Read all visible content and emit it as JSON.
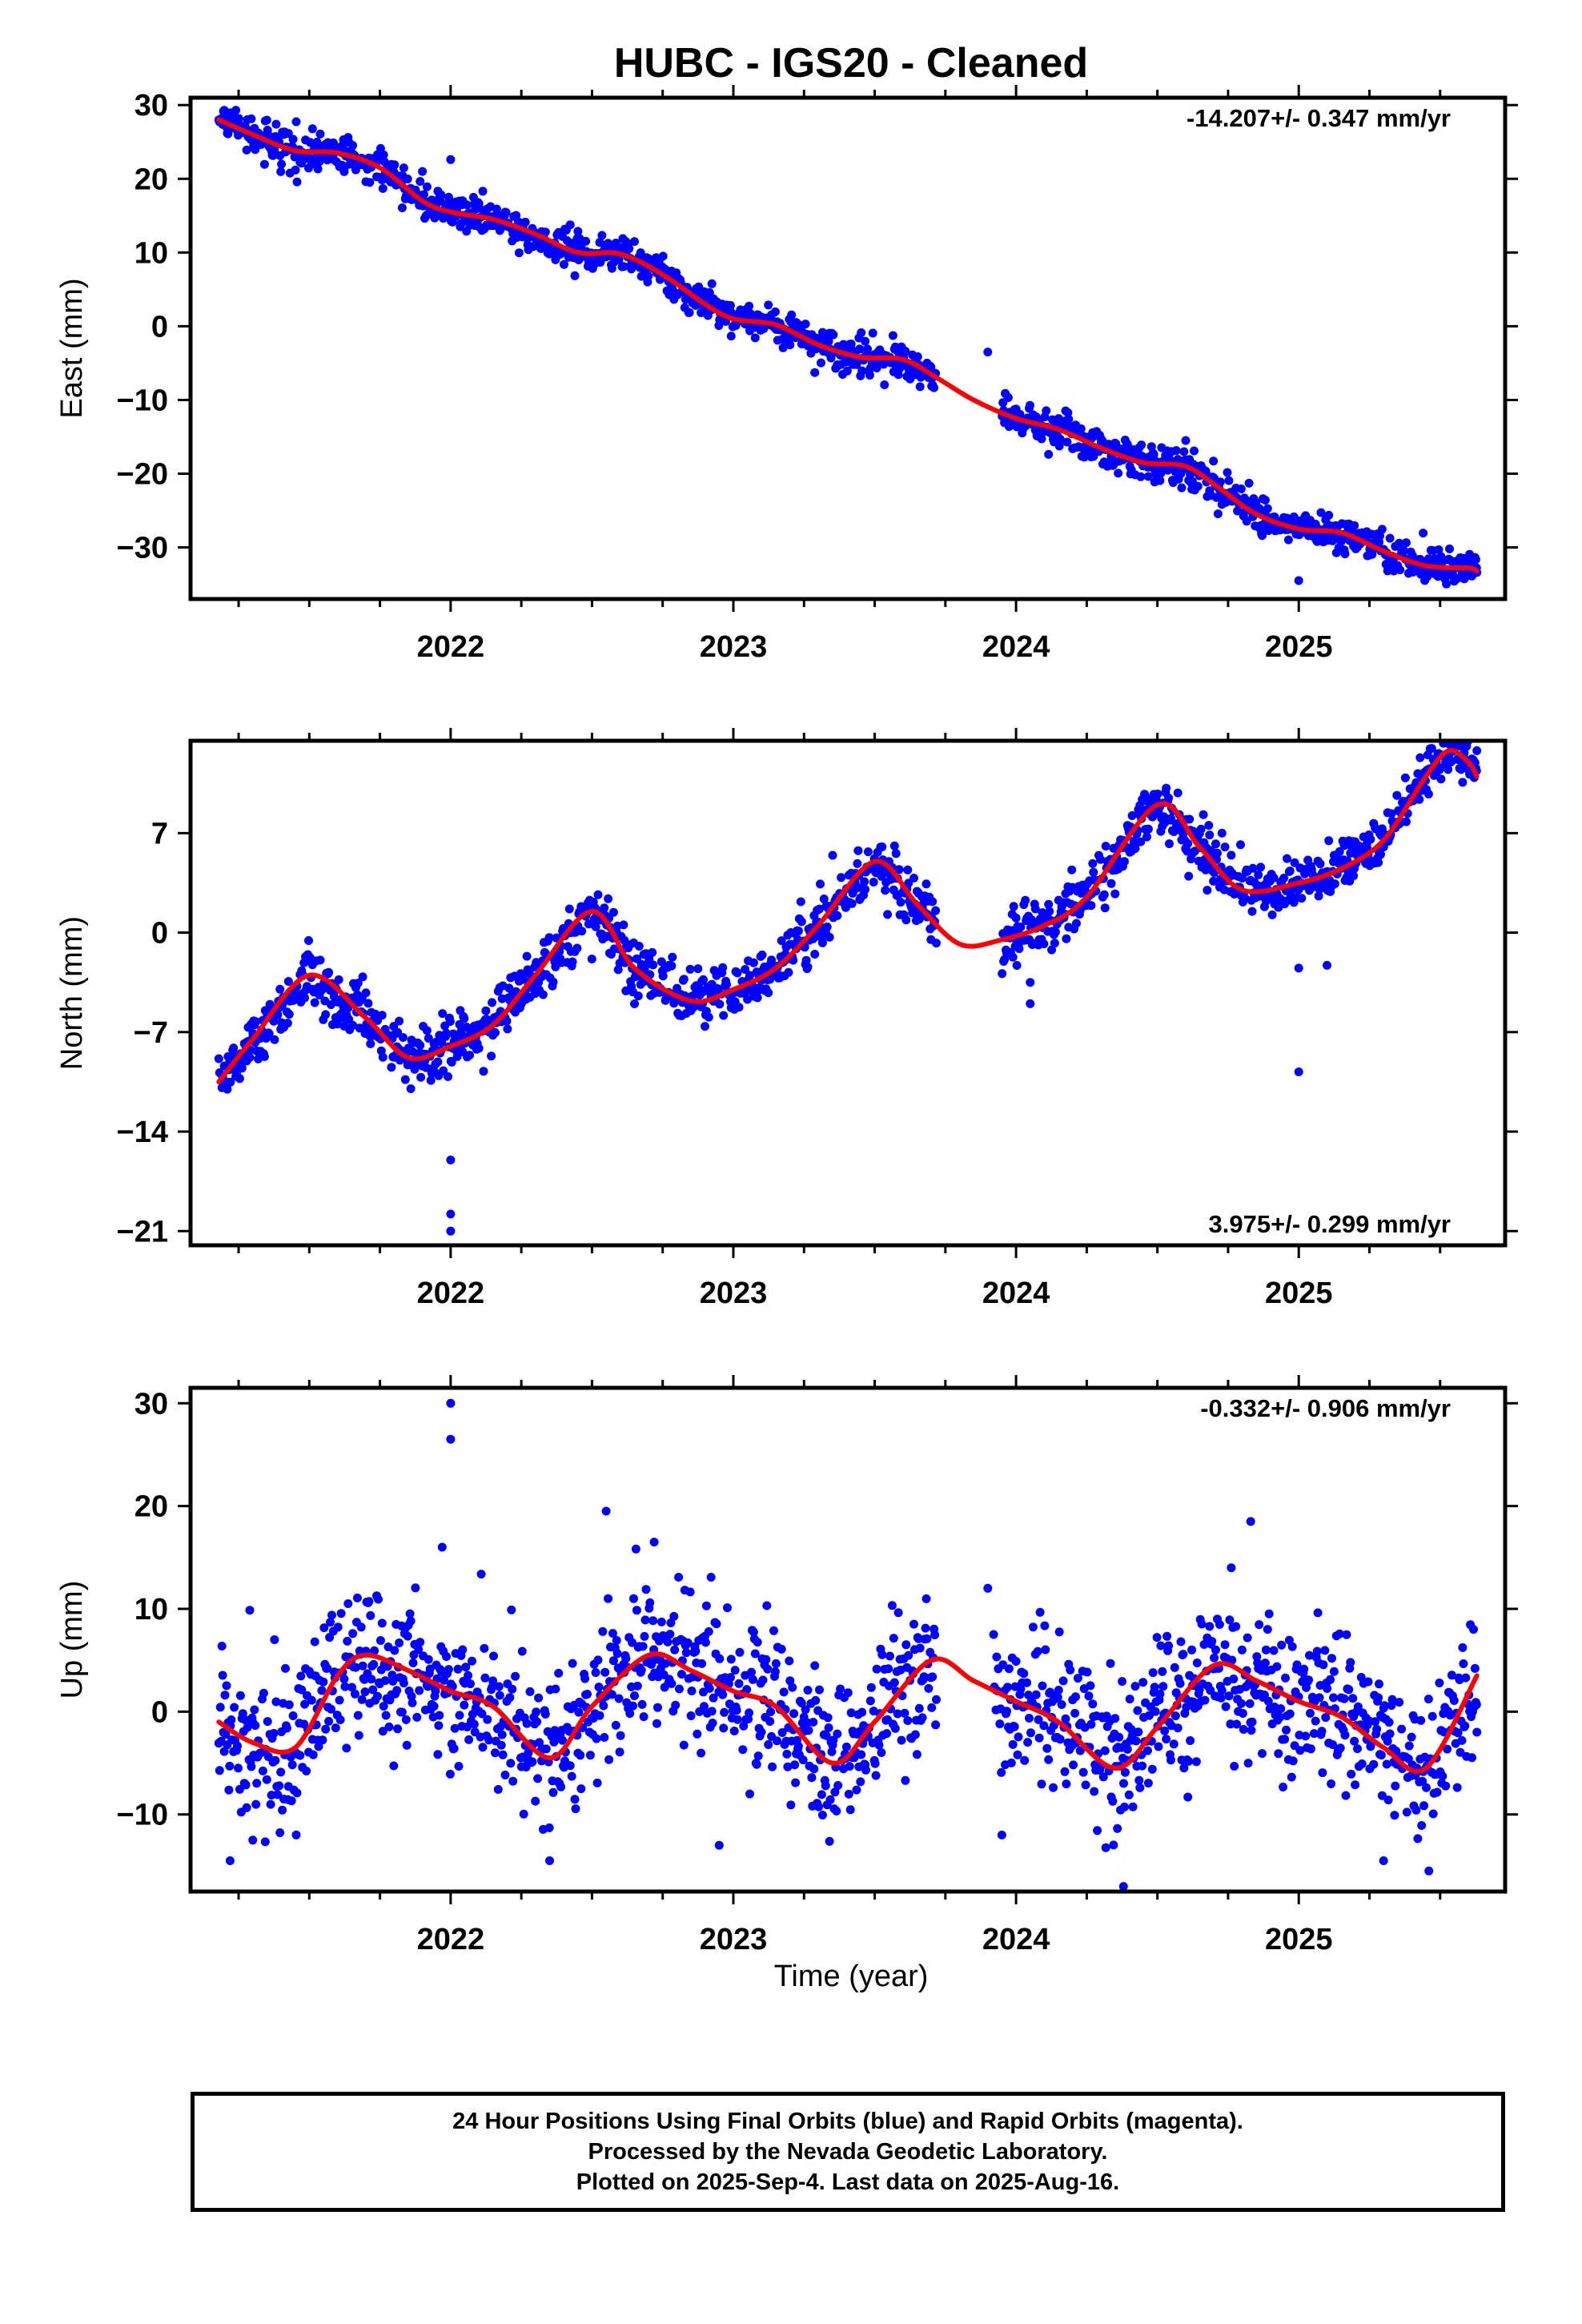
{
  "title": "HUBC  - IGS20 - Cleaned",
  "xlabel": "Time (year)",
  "footer": {
    "line1": "24 Hour Positions Using Final Orbits (blue) and Rapid Orbits (magenta).",
    "line2": "Processed by the Nevada Geodetic Laboratory.",
    "line3": "Plotted on 2025-Sep-4. Last data on 2025-Aug-16."
  },
  "colors": {
    "points": "#0000ff",
    "fit": "#ff0000",
    "axes": "#000000"
  },
  "chart_data": [
    {
      "type": "scatter",
      "component": "east",
      "ylabel": "East (mm)",
      "rate_label": "-14.207+/- 0.347 mm/yr",
      "rate_position": "top-right",
      "xlim": [
        2021.08,
        2025.73
      ],
      "ylim": [
        -37,
        31
      ],
      "x_ticks": [
        2022,
        2023,
        2024,
        2025
      ],
      "y_ticks": [
        30,
        20,
        10,
        0,
        -10,
        -20,
        -30
      ],
      "data_gap": [
        2023.72,
        2023.95
      ],
      "noise_mm": 1.2,
      "isolated_points": [
        [
          2023.9,
          -3.5
        ],
        [
          2022.0,
          22.6
        ],
        [
          2021.9,
          21.0
        ],
        [
          2024.6,
          -15.5
        ],
        [
          2025.0,
          -34.5
        ],
        [
          2025.63,
          -33.4
        ]
      ],
      "fit": {
        "x": [
          2021.18,
          2021.3,
          2021.45,
          2021.6,
          2021.75,
          2021.9,
          2022.0,
          2022.15,
          2022.3,
          2022.45,
          2022.6,
          2022.75,
          2022.9,
          2023.0,
          2023.15,
          2023.3,
          2023.45,
          2023.6,
          2023.72,
          2023.85,
          2024.0,
          2024.15,
          2024.3,
          2024.45,
          2024.6,
          2024.72,
          2024.85,
          2025.0,
          2025.15,
          2025.3,
          2025.45,
          2025.6,
          2025.63
        ],
        "y": [
          28.0,
          26.0,
          23.8,
          23.5,
          21.5,
          17.0,
          15.5,
          14.5,
          12.5,
          10.0,
          9.8,
          7.0,
          3.0,
          1.0,
          0.2,
          -2.5,
          -4.2,
          -4.5,
          -7.0,
          -10.0,
          -12.5,
          -14.0,
          -16.5,
          -18.5,
          -19.0,
          -22.0,
          -25.5,
          -27.5,
          -28.0,
          -30.5,
          -32.5,
          -32.8,
          -33.2
        ]
      }
    },
    {
      "type": "scatter",
      "component": "north",
      "ylabel": "North (mm)",
      "rate_label": "3.975+/- 0.299 mm/yr",
      "rate_position": "bottom-right",
      "xlim": [
        2021.08,
        2025.73
      ],
      "ylim": [
        -22,
        13.5
      ],
      "x_ticks": [
        2022,
        2023,
        2024,
        2025
      ],
      "y_ticks": [
        7,
        0,
        -7,
        -14,
        -21
      ],
      "data_gap": [
        2023.72,
        2023.95
      ],
      "noise_mm": 1.0,
      "isolated_points": [
        [
          2022.0,
          -16.0
        ],
        [
          2022.0,
          -19.8
        ],
        [
          2022.0,
          -21.0
        ],
        [
          2024.05,
          -3.5
        ],
        [
          2024.05,
          -5.0
        ],
        [
          2025.0,
          -2.5
        ],
        [
          2025.1,
          -2.3
        ],
        [
          2025.0,
          -9.8
        ],
        [
          2025.63,
          12.8
        ]
      ],
      "fit": {
        "x": [
          2021.18,
          2021.3,
          2021.5,
          2021.7,
          2021.85,
          2022.0,
          2022.15,
          2022.3,
          2022.5,
          2022.65,
          2022.85,
          2023.0,
          2023.15,
          2023.3,
          2023.5,
          2023.65,
          2023.8,
          2023.95,
          2024.1,
          2024.25,
          2024.5,
          2024.65,
          2024.8,
          2025.0,
          2025.15,
          2025.3,
          2025.45,
          2025.53,
          2025.6,
          2025.63
        ],
        "y": [
          -10.5,
          -7.5,
          -3.0,
          -6.0,
          -8.8,
          -8.0,
          -6.5,
          -3.0,
          1.5,
          -2.5,
          -4.8,
          -4.0,
          -2.5,
          0.5,
          5.0,
          2.0,
          -0.8,
          -0.5,
          0.5,
          2.5,
          9.0,
          6.0,
          3.0,
          3.5,
          4.5,
          6.5,
          11.0,
          12.8,
          12.0,
          11.0
        ]
      }
    },
    {
      "type": "scatter",
      "component": "up",
      "ylabel": "Up (mm)",
      "rate_label": "-0.332+/- 0.906 mm/yr",
      "rate_position": "top-right",
      "xlim": [
        2021.08,
        2025.73
      ],
      "ylim": [
        -17.5,
        31.5
      ],
      "x_ticks": [
        2022,
        2023,
        2024,
        2025
      ],
      "y_ticks": [
        30,
        20,
        10,
        0,
        -10
      ],
      "data_gap": [
        2023.72,
        2023.92
      ],
      "noise_mm": 3.6,
      "isolated_points": [
        [
          2022.0,
          30.0
        ],
        [
          2022.0,
          26.5
        ],
        [
          2021.97,
          16.0
        ],
        [
          2022.55,
          19.5
        ],
        [
          2022.72,
          16.5
        ],
        [
          2024.38,
          -17.0
        ],
        [
          2024.83,
          18.5
        ],
        [
          2025.46,
          -15.5
        ],
        [
          2025.3,
          -14.5
        ],
        [
          2021.22,
          -14.5
        ],
        [
          2021.3,
          -12.5
        ],
        [
          2022.35,
          -14.5
        ],
        [
          2022.95,
          -13.0
        ],
        [
          2023.9,
          12.0
        ],
        [
          2023.95,
          -12.0
        ],
        [
          2025.63,
          -2.0
        ]
      ],
      "fit": {
        "x": [
          2021.18,
          2021.3,
          2021.45,
          2021.6,
          2021.7,
          2021.85,
          2022.0,
          2022.15,
          2022.35,
          2022.5,
          2022.7,
          2022.85,
          2023.0,
          2023.15,
          2023.35,
          2023.5,
          2023.7,
          2023.85,
          2024.0,
          2024.15,
          2024.35,
          2024.5,
          2024.7,
          2024.85,
          2025.0,
          2025.15,
          2025.3,
          2025.45,
          2025.63
        ],
        "y": [
          -1.0,
          -3.0,
          -3.5,
          3.5,
          5.5,
          4.0,
          2.0,
          0.5,
          -4.5,
          0.5,
          5.5,
          4.0,
          2.0,
          0.5,
          -5.0,
          -1.0,
          5.0,
          3.0,
          1.0,
          -1.0,
          -5.5,
          -1.5,
          4.5,
          3.0,
          1.0,
          -0.5,
          -3.5,
          -5.5,
          3.5
        ]
      }
    }
  ]
}
